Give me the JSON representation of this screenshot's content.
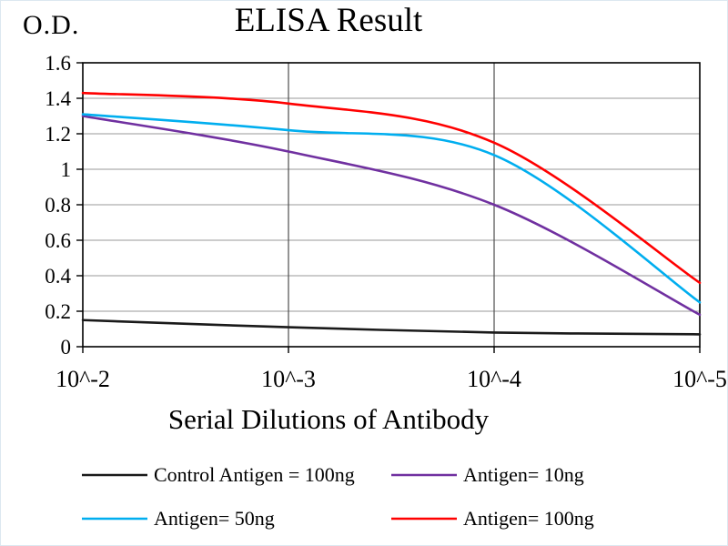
{
  "chart_data": {
    "type": "line",
    "title": "ELISA Result",
    "ylabel": "O.D.",
    "xlabel": "Serial Dilutions of Antibody",
    "categories": [
      "10^-2",
      "10^-3",
      "10^-4",
      "10^-5"
    ],
    "ylim": [
      0,
      1.6
    ],
    "yticks": [
      0,
      0.2,
      0.4,
      0.6,
      0.8,
      1,
      1.2,
      1.4,
      1.6
    ],
    "grid": true,
    "legend_position": "bottom",
    "plot_border_color": "#000000",
    "h_gridline_color": "#999999",
    "v_gridline_color": "#4d4d4d",
    "series": [
      {
        "name": "Control Antigen = 100ng",
        "color": "#1a1a1a",
        "values": [
          0.15,
          0.11,
          0.08,
          0.07
        ]
      },
      {
        "name": "Antigen= 10ng",
        "color": "#7030a0",
        "values": [
          1.3,
          1.1,
          0.8,
          0.18
        ]
      },
      {
        "name": "Antigen= 50ng",
        "color": "#00aeef",
        "values": [
          1.31,
          1.22,
          1.08,
          0.25
        ]
      },
      {
        "name": "Antigen= 100ng",
        "color": "#ff0000",
        "values": [
          1.43,
          1.37,
          1.15,
          0.36
        ]
      }
    ]
  }
}
